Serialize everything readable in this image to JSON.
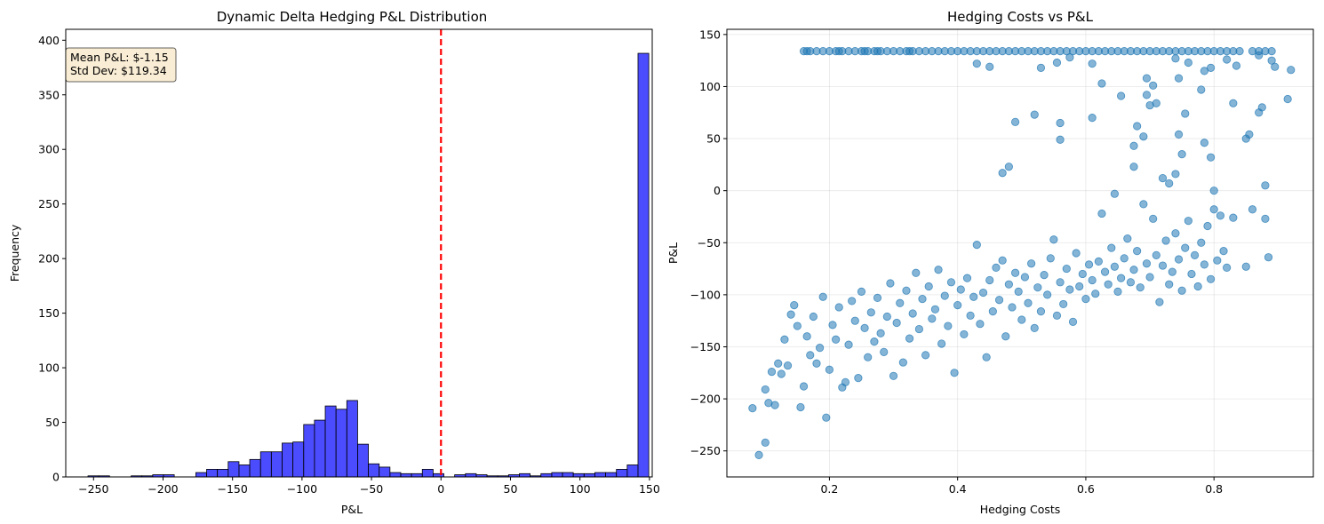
{
  "chart_data": [
    {
      "type": "bar",
      "title": "Dynamic Delta Hedging P&L Distribution",
      "xlabel": "P&L",
      "ylabel": "Frequency",
      "xlim": [
        -270,
        152
      ],
      "ylim": [
        0,
        410
      ],
      "xticks": [
        -250,
        -200,
        -150,
        -100,
        -50,
        0,
        50,
        100,
        150
      ],
      "yticks": [
        0,
        50,
        100,
        150,
        200,
        250,
        300,
        350,
        400
      ],
      "grid": false,
      "bin_start": -254,
      "bin_width": 7.76,
      "bar_color": "#0000ff",
      "bar_edge_color": "#000000",
      "mean_line": {
        "x": 0,
        "color": "#ff0000",
        "style": "dashed"
      },
      "counts": [
        1,
        1,
        0,
        0,
        1,
        1,
        2,
        2,
        0,
        0,
        4,
        7,
        7,
        14,
        11,
        16,
        23,
        23,
        31,
        32,
        48,
        52,
        65,
        62,
        70,
        30,
        12,
        9,
        4,
        3,
        3,
        7,
        3,
        0,
        2,
        3,
        2,
        1,
        1,
        2,
        3,
        1,
        3,
        4,
        4,
        3,
        3,
        4,
        4,
        7,
        11,
        388
      ],
      "stats_box": {
        "line1": "Mean P&L: $-1.15",
        "line2": "Std Dev: $119.34",
        "face_color": "#f5deb3"
      }
    },
    {
      "type": "scatter",
      "title": "Hedging Costs vs P&L",
      "xlabel": "Hedging Costs",
      "ylabel": "P&L",
      "xlim": [
        0.04,
        0.955
      ],
      "ylim": [
        -275,
        155
      ],
      "xticks": [
        0.2,
        0.4,
        0.6,
        0.8
      ],
      "ytick_labels": [
        "−250",
        "−200",
        "−150",
        "−100",
        "−50",
        "0",
        "50",
        "100",
        "150"
      ],
      "yticks": [
        -250,
        -200,
        -150,
        -100,
        -50,
        0,
        50,
        100,
        150
      ],
      "grid": true,
      "point_color": "#1f77b4",
      "point_alpha": 0.55,
      "cap_value": 134,
      "cap_x": [
        0.16,
        0.165,
        0.17,
        0.18,
        0.19,
        0.2,
        0.21,
        0.215,
        0.22,
        0.23,
        0.24,
        0.25,
        0.255,
        0.26,
        0.27,
        0.275,
        0.28,
        0.29,
        0.3,
        0.31,
        0.32,
        0.325,
        0.33,
        0.34,
        0.35,
        0.36,
        0.37,
        0.38,
        0.39,
        0.4,
        0.41,
        0.42,
        0.43,
        0.44,
        0.45,
        0.46,
        0.47,
        0.48,
        0.49,
        0.5,
        0.51,
        0.52,
        0.53,
        0.54,
        0.55,
        0.56,
        0.57,
        0.58,
        0.59,
        0.6,
        0.61,
        0.62,
        0.63,
        0.64,
        0.65,
        0.66,
        0.67,
        0.68,
        0.69,
        0.7,
        0.71,
        0.72,
        0.73,
        0.74,
        0.75,
        0.76,
        0.77,
        0.78,
        0.79,
        0.8,
        0.81,
        0.82,
        0.83,
        0.84,
        0.86,
        0.87,
        0.88,
        0.89
      ],
      "points": [
        [
          0.08,
          -209
        ],
        [
          0.09,
          -254
        ],
        [
          0.1,
          -242
        ],
        [
          0.1,
          -191
        ],
        [
          0.105,
          -204
        ],
        [
          0.11,
          -174
        ],
        [
          0.115,
          -206
        ],
        [
          0.12,
          -166
        ],
        [
          0.125,
          -176
        ],
        [
          0.13,
          -143
        ],
        [
          0.135,
          -168
        ],
        [
          0.14,
          -119
        ],
        [
          0.145,
          -110
        ],
        [
          0.15,
          -130
        ],
        [
          0.155,
          -208
        ],
        [
          0.16,
          -188
        ],
        [
          0.165,
          -140
        ],
        [
          0.17,
          -158
        ],
        [
          0.175,
          -121
        ],
        [
          0.18,
          -166
        ],
        [
          0.185,
          -151
        ],
        [
          0.19,
          -102
        ],
        [
          0.195,
          -218
        ],
        [
          0.2,
          -172
        ],
        [
          0.205,
          -129
        ],
        [
          0.21,
          -143
        ],
        [
          0.215,
          -112
        ],
        [
          0.22,
          -189
        ],
        [
          0.225,
          -184
        ],
        [
          0.23,
          -148
        ],
        [
          0.235,
          -106
        ],
        [
          0.24,
          -125
        ],
        [
          0.245,
          -180
        ],
        [
          0.25,
          -97
        ],
        [
          0.255,
          -132
        ],
        [
          0.26,
          -160
        ],
        [
          0.265,
          -117
        ],
        [
          0.27,
          -145
        ],
        [
          0.275,
          -103
        ],
        [
          0.28,
          -137
        ],
        [
          0.285,
          -155
        ],
        [
          0.29,
          -121
        ],
        [
          0.295,
          -89
        ],
        [
          0.3,
          -178
        ],
        [
          0.305,
          -127
        ],
        [
          0.31,
          -108
        ],
        [
          0.315,
          -165
        ],
        [
          0.32,
          -96
        ],
        [
          0.325,
          -142
        ],
        [
          0.33,
          -118
        ],
        [
          0.335,
          -79
        ],
        [
          0.34,
          -133
        ],
        [
          0.345,
          -104
        ],
        [
          0.35,
          -158
        ],
        [
          0.355,
          -92
        ],
        [
          0.36,
          -123
        ],
        [
          0.365,
          -114
        ],
        [
          0.37,
          -76
        ],
        [
          0.375,
          -147
        ],
        [
          0.38,
          -101
        ],
        [
          0.385,
          -130
        ],
        [
          0.39,
          -88
        ],
        [
          0.395,
          -175
        ],
        [
          0.4,
          -110
        ],
        [
          0.405,
          -95
        ],
        [
          0.41,
          -138
        ],
        [
          0.415,
          -84
        ],
        [
          0.42,
          -120
        ],
        [
          0.425,
          -102
        ],
        [
          0.43,
          -52
        ],
        [
          0.435,
          -128
        ],
        [
          0.44,
          -98
        ],
        [
          0.445,
          -160
        ],
        [
          0.45,
          -86
        ],
        [
          0.455,
          -116
        ],
        [
          0.46,
          -74
        ],
        [
          0.465,
          -105
        ],
        [
          0.47,
          -67
        ],
        [
          0.475,
          -140
        ],
        [
          0.48,
          -90
        ],
        [
          0.485,
          -112
        ],
        [
          0.49,
          -79
        ],
        [
          0.495,
          -97
        ],
        [
          0.5,
          -124
        ],
        [
          0.505,
          -83
        ],
        [
          0.51,
          -108
        ],
        [
          0.515,
          -70
        ],
        [
          0.52,
          -132
        ],
        [
          0.525,
          -93
        ],
        [
          0.53,
          -116
        ],
        [
          0.535,
          -81
        ],
        [
          0.54,
          -100
        ],
        [
          0.545,
          -65
        ],
        [
          0.55,
          -47
        ],
        [
          0.555,
          -120
        ],
        [
          0.56,
          -88
        ],
        [
          0.565,
          -109
        ],
        [
          0.57,
          -75
        ],
        [
          0.575,
          -95
        ],
        [
          0.58,
          -126
        ],
        [
          0.585,
          -60
        ],
        [
          0.59,
          -92
        ],
        [
          0.595,
          -80
        ],
        [
          0.6,
          -104
        ],
        [
          0.605,
          -71
        ],
        [
          0.61,
          -86
        ],
        [
          0.615,
          -99
        ],
        [
          0.62,
          -68
        ],
        [
          0.625,
          -22
        ],
        [
          0.63,
          -78
        ],
        [
          0.635,
          -90
        ],
        [
          0.64,
          -55
        ],
        [
          0.645,
          -73
        ],
        [
          0.65,
          -97
        ],
        [
          0.655,
          -84
        ],
        [
          0.66,
          -65
        ],
        [
          0.665,
          -46
        ],
        [
          0.67,
          -88
        ],
        [
          0.675,
          -76
        ],
        [
          0.68,
          -58
        ],
        [
          0.685,
          -93
        ],
        [
          0.69,
          -13
        ],
        [
          0.695,
          -70
        ],
        [
          0.7,
          -83
        ],
        [
          0.705,
          -27
        ],
        [
          0.71,
          -62
        ],
        [
          0.715,
          -107
        ],
        [
          0.72,
          -72
        ],
        [
          0.725,
          -48
        ],
        [
          0.73,
          -90
        ],
        [
          0.735,
          -78
        ],
        [
          0.74,
          -41
        ],
        [
          0.745,
          -66
        ],
        [
          0.75,
          -96
        ],
        [
          0.755,
          -55
        ],
        [
          0.76,
          -29
        ],
        [
          0.765,
          -80
        ],
        [
          0.77,
          -62
        ],
        [
          0.775,
          -92
        ],
        [
          0.78,
          -50
        ],
        [
          0.785,
          -71
        ],
        [
          0.79,
          -34
        ],
        [
          0.795,
          -85
        ],
        [
          0.8,
          -18
        ],
        [
          0.805,
          -67
        ],
        [
          0.81,
          -24
        ],
        [
          0.815,
          -58
        ],
        [
          0.82,
          -74
        ],
        [
          0.83,
          -26
        ],
        [
          0.85,
          -73
        ],
        [
          0.86,
          -18
        ],
        [
          0.88,
          -27
        ],
        [
          0.885,
          -64
        ],
        [
          0.47,
          17
        ],
        [
          0.48,
          23
        ],
        [
          0.49,
          66
        ],
        [
          0.52,
          73
        ],
        [
          0.56,
          49
        ],
        [
          0.56,
          65
        ],
        [
          0.61,
          70
        ],
        [
          0.645,
          -3
        ],
        [
          0.675,
          23
        ],
        [
          0.675,
          43
        ],
        [
          0.68,
          62
        ],
        [
          0.69,
          52
        ],
        [
          0.695,
          108
        ],
        [
          0.7,
          82
        ],
        [
          0.71,
          84
        ],
        [
          0.72,
          12
        ],
        [
          0.73,
          7
        ],
        [
          0.74,
          16
        ],
        [
          0.745,
          54
        ],
        [
          0.75,
          35
        ],
        [
          0.755,
          74
        ],
        [
          0.78,
          97
        ],
        [
          0.785,
          46
        ],
        [
          0.795,
          32
        ],
        [
          0.8,
          0
        ],
        [
          0.83,
          84
        ],
        [
          0.85,
          50
        ],
        [
          0.855,
          54
        ],
        [
          0.87,
          75
        ],
        [
          0.875,
          80
        ],
        [
          0.88,
          5
        ],
        [
          0.915,
          88
        ],
        [
          0.92,
          116
        ],
        [
          0.43,
          122
        ],
        [
          0.45,
          119
        ],
        [
          0.53,
          118
        ],
        [
          0.555,
          123
        ],
        [
          0.575,
          128
        ],
        [
          0.61,
          122
        ],
        [
          0.625,
          103
        ],
        [
          0.655,
          91
        ],
        [
          0.695,
          92
        ],
        [
          0.705,
          101
        ],
        [
          0.74,
          127
        ],
        [
          0.745,
          108
        ],
        [
          0.76,
          123
        ],
        [
          0.785,
          115
        ],
        [
          0.795,
          118
        ],
        [
          0.82,
          126
        ],
        [
          0.835,
          120
        ],
        [
          0.87,
          130
        ],
        [
          0.89,
          125
        ],
        [
          0.895,
          119
        ]
      ]
    }
  ]
}
